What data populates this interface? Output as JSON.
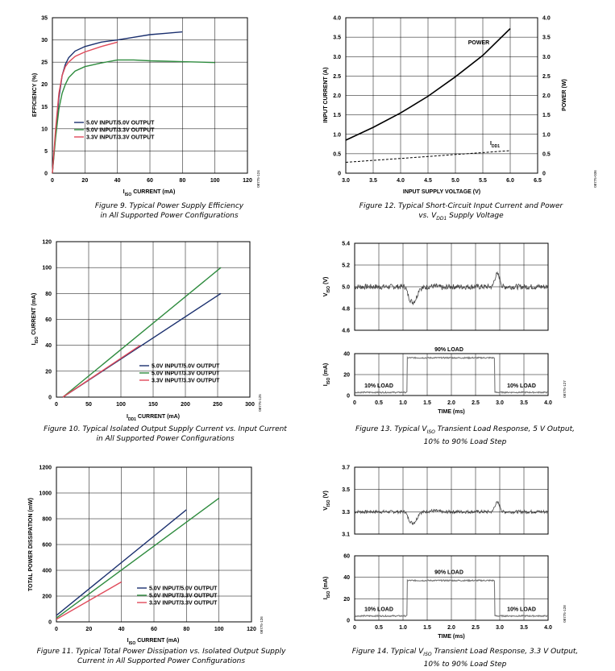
{
  "chart_data": [
    {
      "id": "fig9",
      "type": "line",
      "caption_line1": "Figure 9. Typical Power Supply Efficiency",
      "caption_line2": "in All Supported Power Configurations",
      "xlabel_main": "I",
      "xlabel_sub": "ISO",
      "xlabel_rest": " CURRENT (mA)",
      "ylabel": "EFFICIENCY (%)",
      "xlim": [
        0,
        120
      ],
      "ylim": [
        0,
        35
      ],
      "xticks": [
        "0",
        "20",
        "40",
        "60",
        "80",
        "100",
        "120"
      ],
      "yticks": [
        "0",
        "5",
        "10",
        "15",
        "20",
        "25",
        "30",
        "35"
      ],
      "grid": true,
      "legend_position": "center-left",
      "code": "08775-124",
      "series": [
        {
          "name": "5.0V INPUT/5.0V OUTPUT",
          "color": "#1a2f6e",
          "x": [
            0,
            2,
            4,
            6,
            8,
            10,
            14,
            20,
            30,
            40,
            50,
            60,
            70,
            80
          ],
          "y": [
            0,
            9,
            17,
            22,
            24.5,
            26,
            27.5,
            28.5,
            29.5,
            30,
            30.6,
            31.2,
            31.5,
            31.8
          ]
        },
        {
          "name": "5.0V INPUT/3.3V OUTPUT",
          "color": "#2e8b3e",
          "x": [
            0,
            2,
            4,
            6,
            8,
            10,
            14,
            20,
            30,
            40,
            50,
            60,
            70,
            80,
            90,
            100
          ],
          "y": [
            0,
            8,
            14.5,
            18,
            20,
            21.5,
            23,
            24,
            24.8,
            25.5,
            25.5,
            25.3,
            25.2,
            25.1,
            25,
            24.9
          ]
        },
        {
          "name": "3.3V INPUT/3.3V OUTPUT",
          "color": "#e04a5a",
          "x": [
            0,
            2,
            4,
            6,
            8,
            10,
            14,
            20,
            30,
            40
          ],
          "y": [
            0,
            10,
            18,
            22,
            24,
            25,
            26.3,
            27.3,
            28.5,
            29.5
          ]
        }
      ]
    },
    {
      "id": "fig12",
      "type": "line",
      "caption_line1": "Figure 12. Typical Short-Circuit Input Current and Power",
      "caption_line2_pre": "vs. V",
      "caption_line2_sub": "DD1",
      "caption_line2_post": " Supply Voltage",
      "xlabel": "INPUT SUPPLY VOLTAGE (V)",
      "ylabel": "INPUT CURRENT (A)",
      "y2label": "POWER (W)",
      "xlim": [
        3.0,
        6.5
      ],
      "ylim": [
        0,
        4.0
      ],
      "y2lim": [
        0,
        4.0
      ],
      "xticks": [
        "3.0",
        "3.5",
        "4.0",
        "4.5",
        "5.0",
        "5.5",
        "6.0",
        "6.5"
      ],
      "yticks": [
        "0",
        "0.5",
        "1.0",
        "1.5",
        "2.0",
        "2.5",
        "3.0",
        "3.5",
        "4.0"
      ],
      "grid": true,
      "code": "08775-036",
      "annotations": [
        {
          "text": "POWER"
        },
        {
          "text_main": "I",
          "text_sub": "DD1"
        }
      ],
      "series": [
        {
          "label": "POWER",
          "color": "#000",
          "style": "solid",
          "x": [
            3.0,
            3.5,
            4.0,
            4.5,
            5.0,
            5.5,
            6.0
          ],
          "y": [
            0.85,
            1.18,
            1.55,
            1.98,
            2.48,
            3.03,
            3.72
          ]
        },
        {
          "label": "IDD1",
          "color": "#000",
          "style": "dashed",
          "x": [
            3.0,
            3.5,
            4.0,
            4.5,
            5.0,
            5.5,
            6.0
          ],
          "y": [
            0.28,
            0.33,
            0.38,
            0.43,
            0.48,
            0.53,
            0.58
          ]
        }
      ]
    },
    {
      "id": "fig10",
      "type": "line",
      "caption_line1": "Figure 10. Typical Isolated Output Supply Current vs. Input Current",
      "caption_line2": "in All Supported Power Configurations",
      "xlabel_main": "I",
      "xlabel_sub": "DD1",
      "xlabel_rest": " CURRENT (mA)",
      "ylabel_main": "I",
      "ylabel_sub": "ISO",
      "ylabel_rest": " CURRENT (mA)",
      "xlim": [
        0,
        300
      ],
      "ylim": [
        0,
        120
      ],
      "xticks": [
        "0",
        "50",
        "100",
        "150",
        "200",
        "250",
        "300"
      ],
      "yticks": [
        "0",
        "20",
        "40",
        "60",
        "80",
        "100",
        "120"
      ],
      "grid": true,
      "legend_position": "lower-right",
      "code": "08775-125",
      "series": [
        {
          "name": "5.0V INPUT/5.0V OUTPUT",
          "color": "#1a2f6e",
          "x": [
            10,
            255
          ],
          "y": [
            0,
            80
          ]
        },
        {
          "name": "5.0V INPUT/3.3V OUTPUT",
          "color": "#2e8b3e",
          "x": [
            10,
            255
          ],
          "y": [
            0,
            100
          ]
        },
        {
          "name": "3.3V INPUT/3.3V OUTPUT",
          "color": "#e04a5a",
          "x": [
            10,
            130
          ],
          "y": [
            0,
            40
          ]
        }
      ]
    },
    {
      "id": "fig13",
      "type": "line",
      "caption_line1_pre": "Figure 13. Typical V",
      "caption_line1_sub": "ISO",
      "caption_line1_post": " Transient Load Response, 5 V Output,",
      "caption_line2": "10% to 90% Load Step",
      "code": "08775-127",
      "top": {
        "ylabel_main": "V",
        "ylabel_sub": "ISO",
        "ylabel_rest": " (V)",
        "ylim": [
          4.6,
          5.4
        ],
        "yticks": [
          "4.6",
          "4.8",
          "5.0",
          "5.2",
          "5.4"
        ]
      },
      "bottom": {
        "ylabel_main": "I",
        "ylabel_sub": "ISO",
        "ylabel_rest": " (mA)",
        "ylim": [
          0,
          40
        ],
        "yticks": [
          "0",
          "20",
          "40"
        ],
        "labels": [
          "10% LOAD",
          "90% LOAD",
          "10% LOAD"
        ]
      },
      "xlabel": "TIME (ms)",
      "xlim": [
        0,
        4.0
      ],
      "xticks": [
        "0",
        "0.5",
        "1.0",
        "1.5",
        "2.0",
        "2.5",
        "3.0",
        "3.5",
        "4.0"
      ],
      "grid": true
    },
    {
      "id": "fig11",
      "type": "line",
      "caption_line1": "Figure 11. Typical Total Power Dissipation vs. Isolated Output Supply",
      "caption_line2": "Current in All Supported Power Configurations",
      "xlabel_main": "I",
      "xlabel_sub": "ISO",
      "xlabel_rest": " CURRENT (mA)",
      "ylabel": "TOTAL POWER DISSIPATION (mW)",
      "xlim": [
        0,
        120
      ],
      "ylim": [
        0,
        1200
      ],
      "xticks": [
        "0",
        "20",
        "40",
        "60",
        "80",
        "100",
        "120"
      ],
      "yticks": [
        "0",
        "200",
        "400",
        "600",
        "800",
        "1000",
        "1200"
      ],
      "grid": true,
      "legend_position": "center-right",
      "code": "08775-126",
      "series": [
        {
          "name": "5.0V INPUT/5.0V OUTPUT",
          "color": "#1a2f6e",
          "x": [
            0,
            80
          ],
          "y": [
            50,
            870
          ]
        },
        {
          "name": "5.0V INPUT/3.3V OUTPUT",
          "color": "#2e8b3e",
          "x": [
            0,
            100
          ],
          "y": [
            30,
            960
          ]
        },
        {
          "name": "3.3V INPUT/3.3V OUTPUT",
          "color": "#e04a5a",
          "x": [
            0,
            40
          ],
          "y": [
            20,
            310
          ]
        }
      ]
    },
    {
      "id": "fig14",
      "type": "line",
      "caption_line1_pre": "Figure 14. Typical V",
      "caption_line1_sub": "ISO",
      "caption_line1_post": " Transient Load Response, 3.3 V Output,",
      "caption_line2": "10% to 90% Load Step",
      "code": "08775-128",
      "top": {
        "ylabel_main": "V",
        "ylabel_sub": "ISO",
        "ylabel_rest": " (V)",
        "ylim": [
          3.1,
          3.7
        ],
        "yticks": [
          "3.1",
          "3.3",
          "3.5",
          "3.7"
        ]
      },
      "bottom": {
        "ylabel_main": "I",
        "ylabel_sub": "ISO",
        "ylabel_rest": " (mA)",
        "ylim": [
          0,
          60
        ],
        "yticks": [
          "0",
          "20",
          "40",
          "60"
        ],
        "labels": [
          "10% LOAD",
          "90% LOAD",
          "10% LOAD"
        ]
      },
      "xlabel": "TIME (ms)",
      "xlim": [
        0,
        4.0
      ],
      "xticks": [
        "0",
        "0.5",
        "1.0",
        "1.5",
        "2.0",
        "2.5",
        "3.0",
        "3.5",
        "4.0"
      ],
      "grid": true
    }
  ]
}
